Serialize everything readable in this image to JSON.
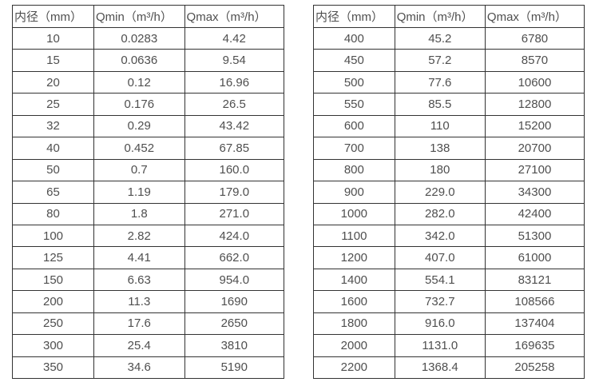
{
  "page": {
    "background_color": "#ffffff",
    "border_color": "#333333",
    "text_color": "#4f4f4f"
  },
  "tables": [
    {
      "headers": [
        "内径（mm）",
        "Qmin（m³/h）",
        "Qmax（m³/h）"
      ],
      "rows": [
        [
          "10",
          "0.0283",
          "4.42"
        ],
        [
          "15",
          "0.0636",
          "9.54"
        ],
        [
          "20",
          "0.12",
          "16.96"
        ],
        [
          "25",
          "0.176",
          "26.5"
        ],
        [
          "32",
          "0.29",
          "43.42"
        ],
        [
          "40",
          "0.452",
          "67.85"
        ],
        [
          "50",
          "0.7",
          "160.0"
        ],
        [
          "65",
          "1.19",
          "179.0"
        ],
        [
          "80",
          "1.8",
          "271.0"
        ],
        [
          "100",
          "2.82",
          "424.0"
        ],
        [
          "125",
          "4.41",
          "662.0"
        ],
        [
          "150",
          "6.63",
          "954.0"
        ],
        [
          "200",
          "11.3",
          "1690"
        ],
        [
          "250",
          "17.6",
          "2650"
        ],
        [
          "300",
          "25.4",
          "3810"
        ],
        [
          "350",
          "34.6",
          "5190"
        ]
      ]
    },
    {
      "headers": [
        "内径（mm）",
        "Qmin（m³/h）",
        "Qmax（m³/h）"
      ],
      "rows": [
        [
          "400",
          "45.2",
          "6780"
        ],
        [
          "450",
          "57.2",
          "8570"
        ],
        [
          "500",
          "77.6",
          "10600"
        ],
        [
          "550",
          "85.5",
          "12800"
        ],
        [
          "600",
          "110",
          "15200"
        ],
        [
          "700",
          "138",
          "20700"
        ],
        [
          "800",
          "180",
          "27100"
        ],
        [
          "900",
          "229.0",
          "34300"
        ],
        [
          "1000",
          "282.0",
          "42400"
        ],
        [
          "1100",
          "342.0",
          "51300"
        ],
        [
          "1200",
          "407.0",
          "61000"
        ],
        [
          "1400",
          "554.1",
          "83121"
        ],
        [
          "1600",
          "732.7",
          "108566"
        ],
        [
          "1800",
          "916.0",
          "137404"
        ],
        [
          "2000",
          "1131.0",
          "169635"
        ],
        [
          "2200",
          "1368.4",
          "205258"
        ]
      ]
    }
  ]
}
